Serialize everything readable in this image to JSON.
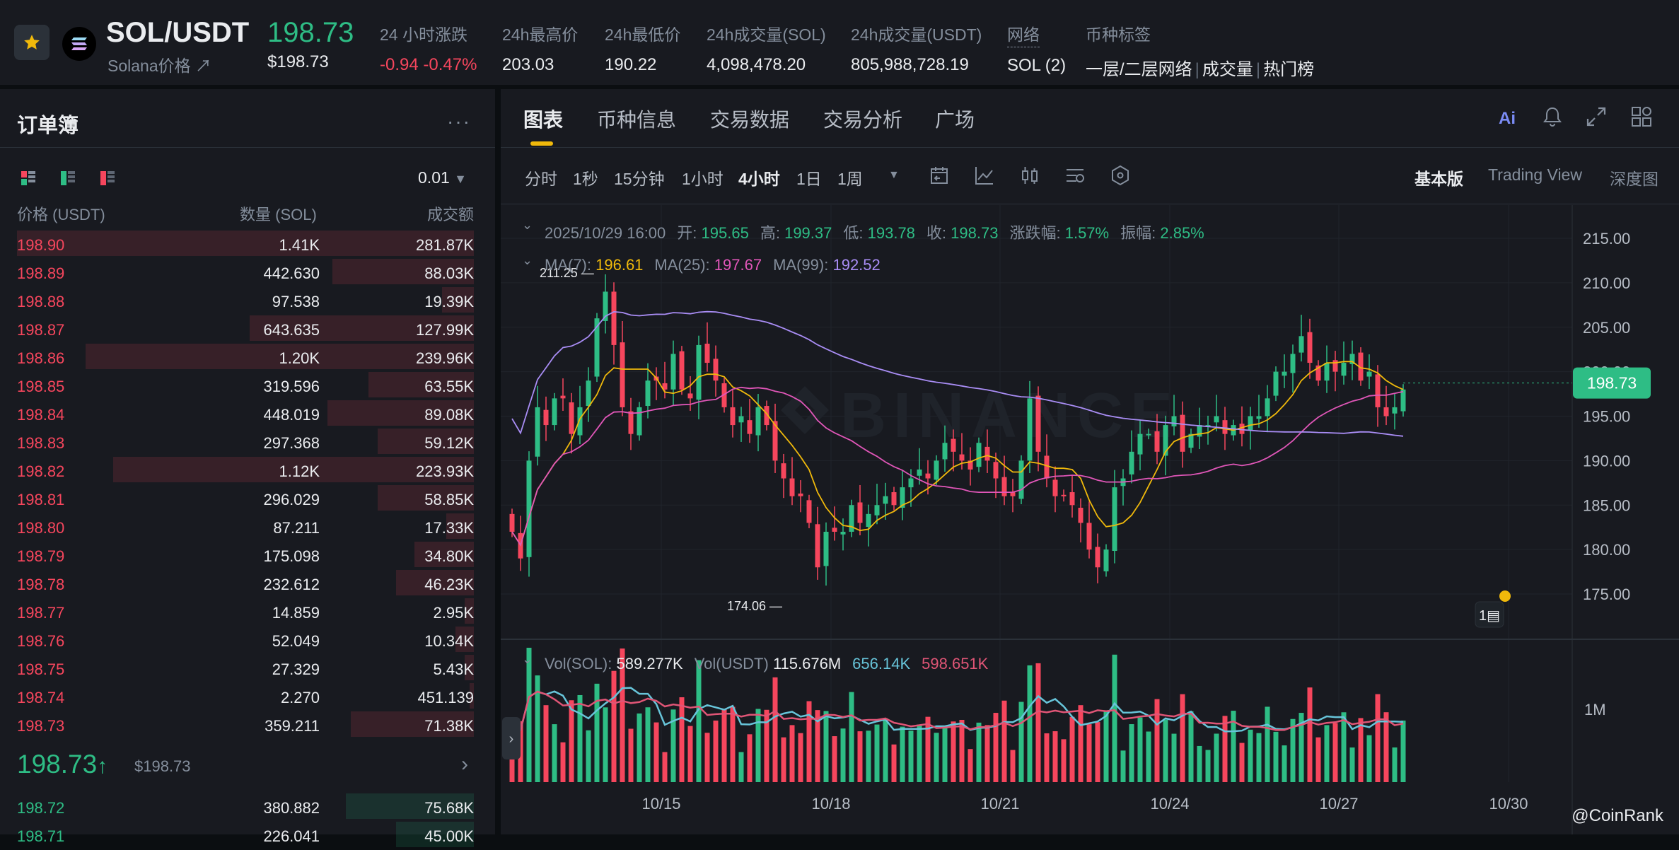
{
  "header": {
    "symbol": "SOL/USDT",
    "subtitle": "Solana价格 ↗",
    "last_price": "198.73",
    "last_price_usd": "$198.73",
    "stats": [
      {
        "label": "24 小时涨跌",
        "value": "-0.94 -0.47%",
        "color": "red"
      },
      {
        "label": "24h最高价",
        "value": "203.03"
      },
      {
        "label": "24h最低价",
        "value": "190.22"
      },
      {
        "label": "24h成交量(SOL)",
        "value": "4,098,478.20"
      },
      {
        "label": "24h成交量(USDT)",
        "value": "805,988,728.19"
      },
      {
        "label": "网络",
        "value": "SOL (2)"
      }
    ],
    "tags_label": "币种标签",
    "tags": [
      "一层/二层网络",
      "成交量",
      "热门榜"
    ]
  },
  "orderbook": {
    "title": "订单簿",
    "precision": "0.01",
    "col_price": "价格 (USDT)",
    "col_qty": "数量 (SOL)",
    "col_total": "成交额",
    "asks": [
      {
        "price": "198.90",
        "qty": "1.41K",
        "total": "281.87K",
        "depth": 1.0
      },
      {
        "price": "198.89",
        "qty": "442.630",
        "total": "88.03K",
        "depth": 0.31
      },
      {
        "price": "198.88",
        "qty": "97.538",
        "total": "19.39K",
        "depth": 0.07
      },
      {
        "price": "198.87",
        "qty": "643.635",
        "total": "127.99K",
        "depth": 0.49
      },
      {
        "price": "198.86",
        "qty": "1.20K",
        "total": "239.96K",
        "depth": 0.85
      },
      {
        "price": "198.85",
        "qty": "319.596",
        "total": "63.55K",
        "depth": 0.23
      },
      {
        "price": "198.84",
        "qty": "448.019",
        "total": "89.08K",
        "depth": 0.32
      },
      {
        "price": "198.83",
        "qty": "297.368",
        "total": "59.12K",
        "depth": 0.21
      },
      {
        "price": "198.82",
        "qty": "1.12K",
        "total": "223.93K",
        "depth": 0.79
      },
      {
        "price": "198.81",
        "qty": "296.029",
        "total": "58.85K",
        "depth": 0.21
      },
      {
        "price": "198.80",
        "qty": "87.211",
        "total": "17.33K",
        "depth": 0.06
      },
      {
        "price": "198.79",
        "qty": "175.098",
        "total": "34.80K",
        "depth": 0.13
      },
      {
        "price": "198.78",
        "qty": "232.612",
        "total": "46.23K",
        "depth": 0.17
      },
      {
        "price": "198.77",
        "qty": "14.859",
        "total": "2.95K",
        "depth": 0.02
      },
      {
        "price": "198.76",
        "qty": "52.049",
        "total": "10.34K",
        "depth": 0.04
      },
      {
        "price": "198.75",
        "qty": "27.329",
        "total": "5.43K",
        "depth": 0.02
      },
      {
        "price": "198.74",
        "qty": "2.270",
        "total": "451.139",
        "depth": 0.01
      },
      {
        "price": "198.73",
        "qty": "359.211",
        "total": "71.38K",
        "depth": 0.27
      }
    ],
    "mid_price": "198.73",
    "mid_usd": "$198.73",
    "bids": [
      {
        "price": "198.72",
        "qty": "380.882",
        "total": "75.68K",
        "depth": 0.28
      },
      {
        "price": "198.71",
        "qty": "226.041",
        "total": "45.00K",
        "depth": 0.17
      }
    ]
  },
  "chart_panel": {
    "tabs": [
      "图表",
      "币种信息",
      "交易数据",
      "交易分析",
      "广场"
    ],
    "intervals": [
      "分时",
      "1秒",
      "15分钟",
      "1小时",
      "4小时",
      "1日",
      "1周"
    ],
    "active_interval": "4小时",
    "versions": [
      "基本版",
      "Trading View",
      "深度图"
    ],
    "ohlc": {
      "date": "2025/10/29 16:00",
      "open_label": "开:",
      "open": "195.65",
      "high_label": "高:",
      "high": "199.37",
      "low_label": "低:",
      "low": "193.78",
      "close_label": "收:",
      "close": "198.73",
      "chg_label": "涨跌幅:",
      "chg": "1.57%",
      "amp_label": "振幅:",
      "amp": "2.85%"
    },
    "ma": [
      {
        "label": "MA(7):",
        "value": "196.61",
        "color": "#f0b90b"
      },
      {
        "label": "MA(25):",
        "value": "197.67",
        "color": "#e056b8"
      },
      {
        "label": "MA(99):",
        "value": "192.52",
        "color": "#a98df5"
      }
    ],
    "vol": [
      {
        "label": "Vol(SOL):",
        "value": "589.277K"
      },
      {
        "label": "Vol(USDT)",
        "value": "115.676M"
      },
      {
        "label": "",
        "value": "656.14K",
        "color": "#67c4d9"
      },
      {
        "label": "",
        "value": "598.651K",
        "color": "#e05576"
      }
    ],
    "credit": "@CoinRank"
  },
  "chart_data": {
    "type": "candlestick",
    "yticks": [
      "215.00",
      "210.00",
      "205.00",
      "200.00",
      "195.00",
      "190.00",
      "185.00",
      "180.00",
      "175.00"
    ],
    "ylim": [
      172,
      217
    ],
    "xticks": [
      "10/15",
      "10/18",
      "10/21",
      "10/24",
      "10/27",
      "10/30"
    ],
    "high_marker": "211.25",
    "low_marker": "174.06",
    "last_label": "198.73",
    "vol_tick": "1M",
    "colors": {
      "up": "#2ebd85",
      "down": "#f6465d"
    },
    "closes": [
      182,
      179,
      190,
      196,
      194,
      197,
      197,
      193,
      196,
      199,
      206,
      209,
      203,
      196,
      193,
      196,
      199,
      199,
      198,
      202,
      198,
      197,
      203,
      201,
      199,
      196,
      194,
      195,
      193,
      196,
      194,
      190,
      188,
      186,
      186,
      183,
      178,
      182,
      182,
      182,
      185,
      183,
      184,
      185,
      186,
      185,
      187,
      188,
      189,
      188,
      190,
      192,
      191,
      190,
      189,
      192,
      190,
      188,
      186,
      186,
      190,
      197,
      191,
      188,
      186,
      186,
      185,
      183,
      180,
      178,
      180,
      187,
      188,
      191,
      193,
      193,
      191,
      194,
      195,
      191,
      193,
      194,
      194,
      195,
      193,
      194,
      193,
      195,
      195,
      197,
      200,
      200,
      202,
      204,
      201,
      199,
      201,
      200,
      201,
      202,
      199,
      200,
      196,
      195,
      196,
      198
    ]
  }
}
